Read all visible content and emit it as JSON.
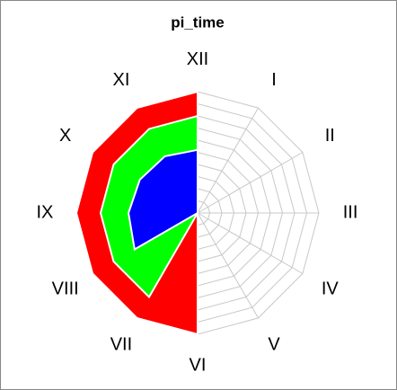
{
  "chart_data": {
    "type": "radar",
    "title": "pi_time",
    "categories": [
      "XII",
      "I",
      "II",
      "III",
      "IV",
      "V",
      "VI",
      "VII",
      "VIII",
      "IX",
      "X",
      "XI"
    ],
    "rlim": [
      0,
      10
    ],
    "grid_rings": 10,
    "grid": true,
    "series": [
      {
        "color": "#ff0000",
        "values": [
          10,
          0,
          0,
          0,
          0,
          0,
          10,
          10,
          10,
          10,
          10,
          10
        ]
      },
      {
        "color": "#00ff00",
        "values": [
          8,
          0,
          0,
          0,
          0,
          0,
          0,
          8,
          8,
          8,
          8,
          8
        ]
      },
      {
        "color": "#0000ff",
        "values": [
          5.2,
          0,
          0,
          0,
          0,
          0,
          0,
          0,
          6,
          5.7,
          5.5,
          5.4
        ]
      }
    ]
  }
}
